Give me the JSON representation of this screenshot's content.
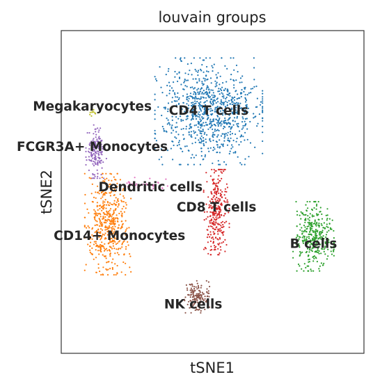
{
  "chart_data": {
    "type": "scatter",
    "title": "louvain groups",
    "xlabel": "tSNE1",
    "ylabel": "tSNE2",
    "grid": false,
    "legend": "on data",
    "xlim": [
      -38,
      40
    ],
    "ylim": [
      -40,
      40
    ],
    "series": [
      {
        "name": "CD4 T cells",
        "color": "#1f77b4",
        "center": [
          0,
          20
        ],
        "spread": [
          10.5,
          10
        ],
        "n": 900
      },
      {
        "name": "CD14+ Monocytes",
        "color": "#ff7f0e",
        "center": [
          -26,
          -8
        ],
        "spread": [
          4.5,
          9.5
        ],
        "n": 480
      },
      {
        "name": "B cells",
        "color": "#2ca02c",
        "center": [
          27,
          -11
        ],
        "spread": [
          4,
          6.5
        ],
        "n": 340
      },
      {
        "name": "CD8 T cells",
        "color": "#d62728",
        "center": [
          2,
          -5
        ],
        "spread": [
          2.5,
          8
        ],
        "n": 300
      },
      {
        "name": "NK cells",
        "color": "#8c564b",
        "center": [
          -3,
          -26
        ],
        "spread": [
          2.5,
          3
        ],
        "n": 150
      },
      {
        "name": "FCGR3A+ Monocytes",
        "color": "#9467bd",
        "center": [
          -29,
          10
        ],
        "spread": [
          2,
          5
        ],
        "n": 160
      },
      {
        "name": "Dendritic cells",
        "color": "#e377c2",
        "center": [
          -17,
          2
        ],
        "spread": [
          5,
          1.2
        ],
        "n": 35
      },
      {
        "name": "Megakaryocytes",
        "color": "#bcbd22",
        "center": [
          -30,
          20
        ],
        "spread": [
          0.6,
          1
        ],
        "n": 12
      }
    ],
    "cluster_labels": [
      {
        "text": "CD4 T cells",
        "x": 0,
        "y": 20
      },
      {
        "text": "Megakaryocytes",
        "x": -30,
        "y": 21
      },
      {
        "text": "FCGR3A+ Monocytes",
        "x": -30,
        "y": 11
      },
      {
        "text": "Dendritic cells",
        "x": -15,
        "y": 1
      },
      {
        "text": "CD8 T cells",
        "x": 2,
        "y": -4
      },
      {
        "text": "CD14+ Monocytes",
        "x": -23,
        "y": -11
      },
      {
        "text": "B cells",
        "x": 27,
        "y": -13
      },
      {
        "text": "NK cells",
        "x": -4,
        "y": -28
      }
    ]
  }
}
